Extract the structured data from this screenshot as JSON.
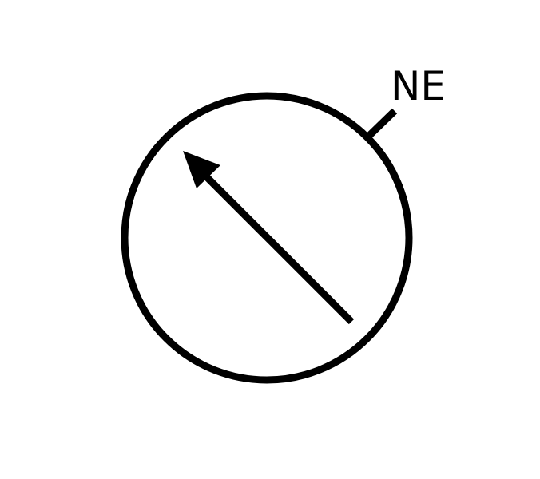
{
  "diagram": {
    "direction_label": "NE",
    "stroke_color": "#000000",
    "background_color": "#ffffff",
    "arrow_direction": "northwest",
    "tick_direction": "northeast"
  }
}
